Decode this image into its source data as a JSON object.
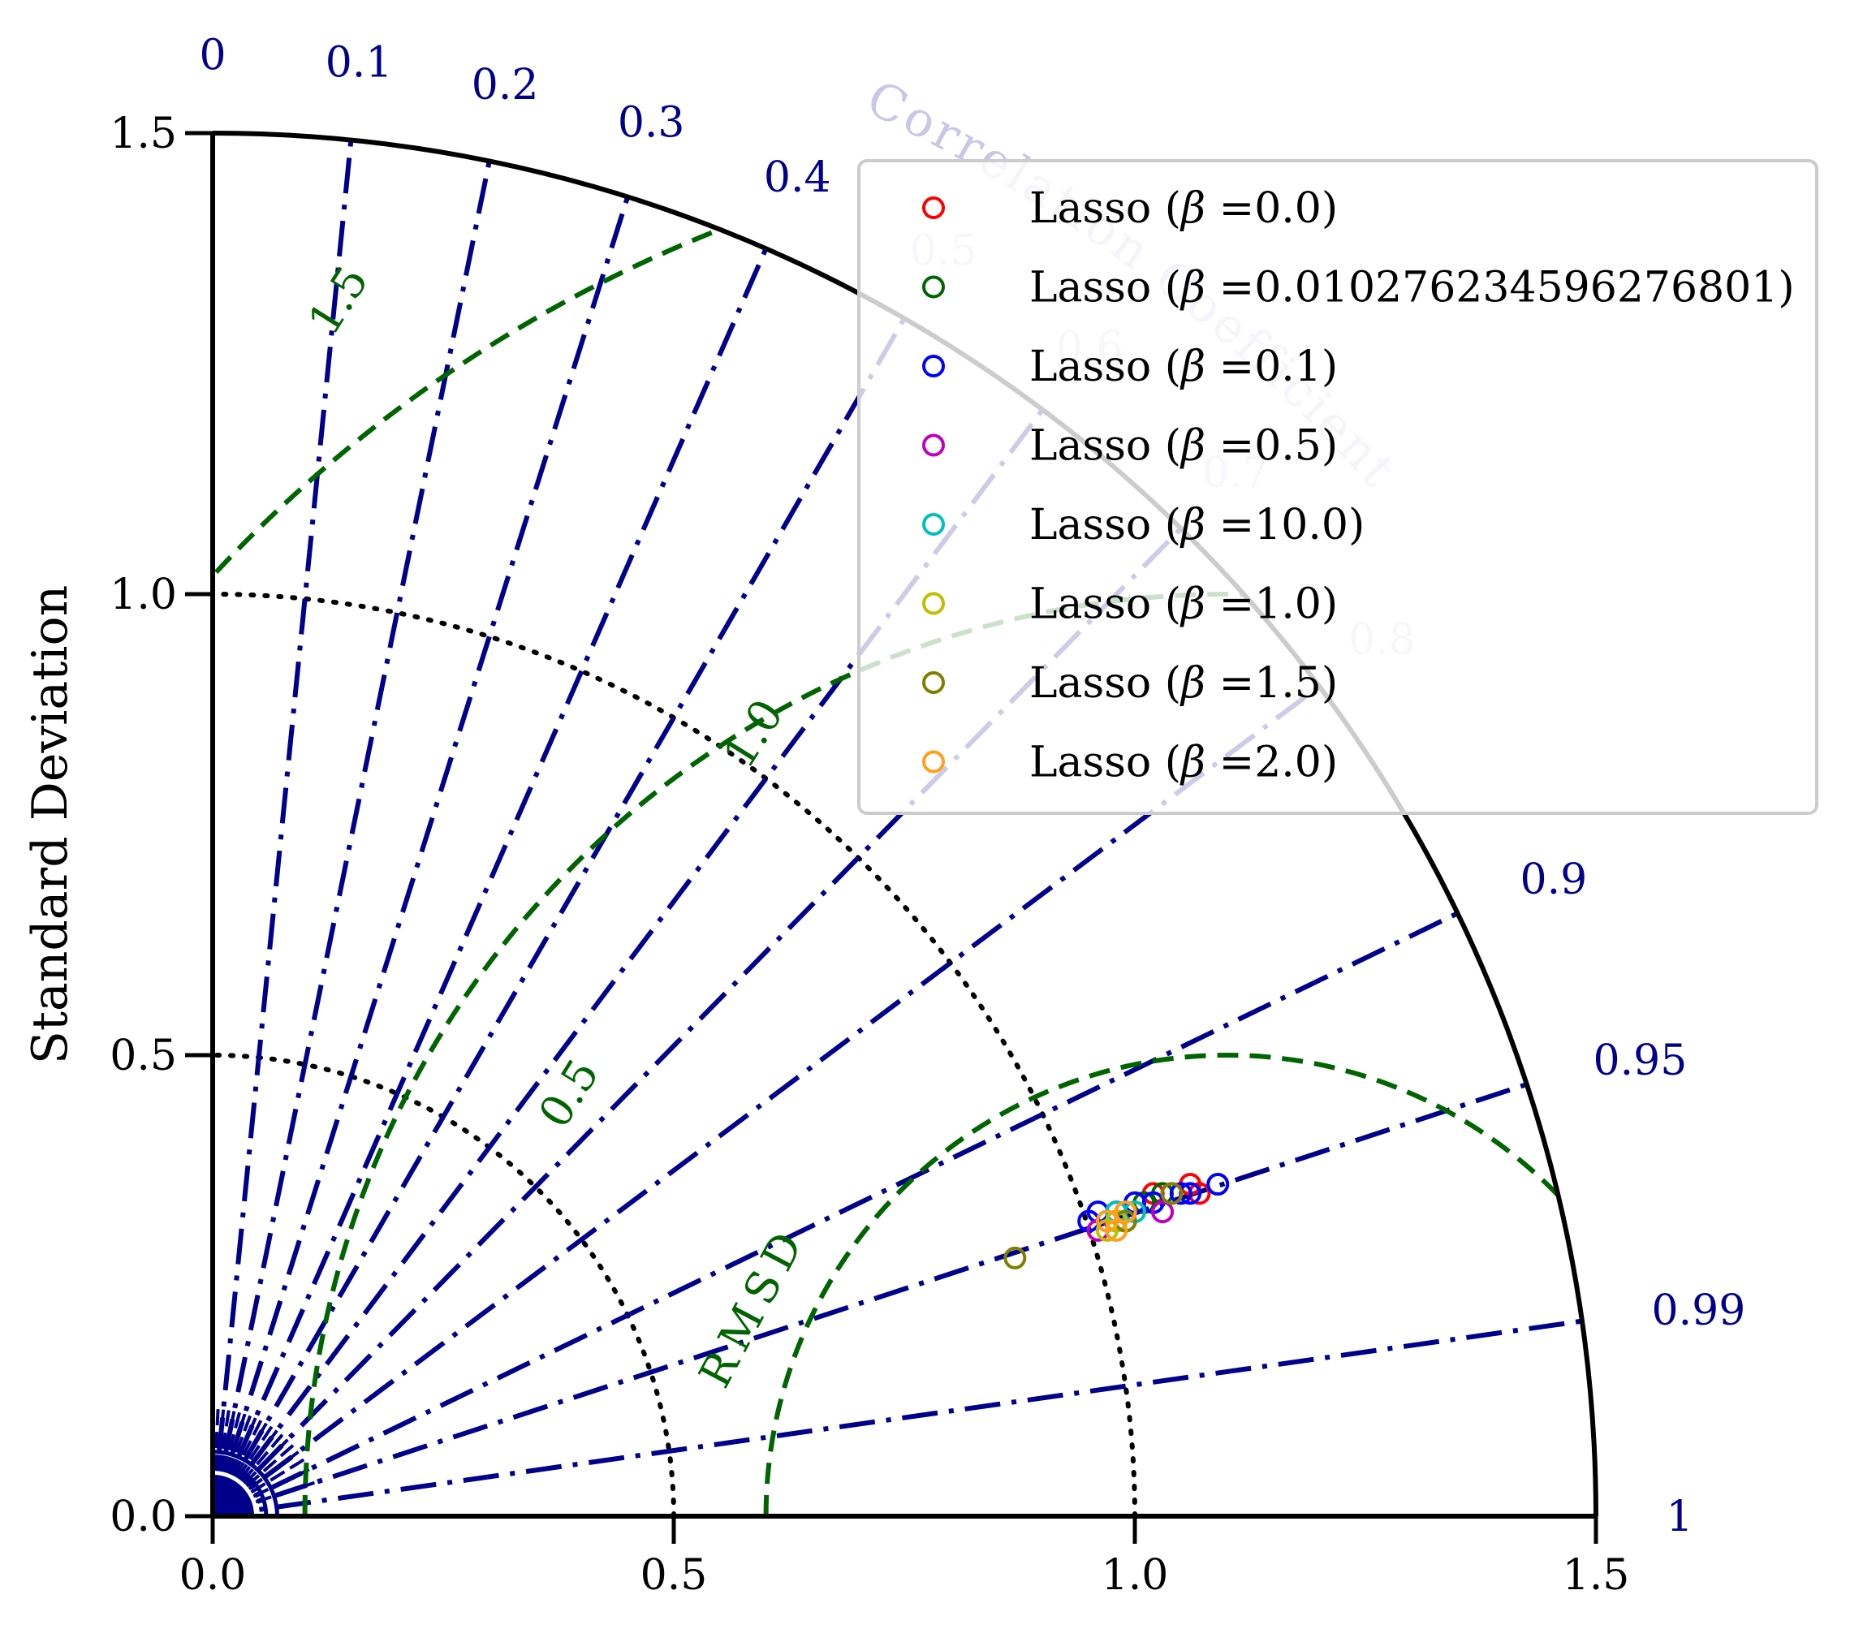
{
  "chart_data": {
    "type": "scatter",
    "subtype": "taylor-diagram",
    "title": "",
    "ylabel": "Standard Deviation",
    "xlabel": "",
    "std_range": [
      0,
      1.5
    ],
    "std_ticks": [
      "0.0",
      "0.5",
      "1.0",
      "1.5"
    ],
    "std_tick_values": [
      0,
      0.5,
      1.0,
      1.5
    ],
    "correlation_title": "Correlation Coefficient",
    "correlation_ticks": [
      {
        "value": 0,
        "label": "0"
      },
      {
        "value": 0.1,
        "label": "0.1"
      },
      {
        "value": 0.2,
        "label": "0.2"
      },
      {
        "value": 0.3,
        "label": "0.3"
      },
      {
        "value": 0.4,
        "label": "0.4"
      },
      {
        "value": 0.5,
        "label": "0.5"
      },
      {
        "value": 0.6,
        "label": "0.6"
      },
      {
        "value": 0.7,
        "label": "0.7"
      },
      {
        "value": 0.8,
        "label": "0.8"
      },
      {
        "value": 0.9,
        "label": "0.9"
      },
      {
        "value": 0.95,
        "label": "0.95"
      },
      {
        "value": 0.99,
        "label": "0.99"
      },
      {
        "value": 1,
        "label": "1"
      }
    ],
    "rmsd_title": "RMSD",
    "rmsd_contours": [
      {
        "value": 0.5,
        "label": "0.5"
      },
      {
        "value": 1.0,
        "label": "1.0"
      },
      {
        "value": 1.5,
        "label": "1.5"
      }
    ],
    "reference_std": 1.1,
    "std_arcs": [
      0.5,
      1.0
    ],
    "legend_position": "upper-right",
    "colors": {
      "correlation": "#00008b",
      "rmsd": "#006400",
      "std_arc": "#000000",
      "axis": "#000000"
    },
    "series": [
      {
        "name": "Lasso (β =0.0)",
        "legend_prefix": "Lasso (",
        "legend_beta": "β",
        "legend_suffix": " =0.0)",
        "color": "#ff0000",
        "points": [
          {
            "x": 1.06,
            "y": 0.36
          },
          {
            "x": 1.04,
            "y": 0.35
          },
          {
            "x": 1.02,
            "y": 0.35
          },
          {
            "x": 0.99,
            "y": 0.33
          },
          {
            "x": 1.07,
            "y": 0.35
          }
        ]
      },
      {
        "name": "Lasso (β =0.010276234596276801)",
        "legend_prefix": "Lasso (",
        "legend_beta": "β",
        "legend_suffix": " =0.010276234596276801)",
        "color": "#006400",
        "points": [
          {
            "x": 1.03,
            "y": 0.35
          },
          {
            "x": 1.01,
            "y": 0.34
          },
          {
            "x": 0.98,
            "y": 0.32
          }
        ]
      },
      {
        "name": "Lasso (β =0.1)",
        "legend_prefix": "Lasso (",
        "legend_beta": "β",
        "legend_suffix": " =0.1)",
        "color": "#0000ff",
        "points": [
          {
            "x": 1.09,
            "y": 0.36
          },
          {
            "x": 1.06,
            "y": 0.35
          },
          {
            "x": 1.05,
            "y": 0.35
          },
          {
            "x": 1.02,
            "y": 0.34
          },
          {
            "x": 1.0,
            "y": 0.34
          },
          {
            "x": 0.98,
            "y": 0.33
          },
          {
            "x": 0.96,
            "y": 0.33
          },
          {
            "x": 0.95,
            "y": 0.32
          }
        ]
      },
      {
        "name": "Lasso (β =0.5)",
        "legend_prefix": "Lasso (",
        "legend_beta": "β",
        "legend_suffix": " =0.5)",
        "color": "#bf00bf",
        "points": [
          {
            "x": 1.03,
            "y": 0.33
          },
          {
            "x": 0.99,
            "y": 0.32
          },
          {
            "x": 0.96,
            "y": 0.31
          }
        ]
      },
      {
        "name": "Lasso (β =10.0)",
        "legend_prefix": "Lasso (",
        "legend_beta": "β",
        "legend_suffix": " =10.0)",
        "color": "#00bfbf",
        "points": [
          {
            "x": 1.0,
            "y": 0.33
          },
          {
            "x": 0.98,
            "y": 0.33
          },
          {
            "x": 0.97,
            "y": 0.32
          }
        ]
      },
      {
        "name": "Lasso (β =1.0)",
        "legend_prefix": "Lasso (",
        "legend_beta": "β",
        "legend_suffix": " =1.0)",
        "color": "#bfbf00",
        "points": [
          {
            "x": 0.98,
            "y": 0.32
          },
          {
            "x": 0.97,
            "y": 0.31
          }
        ]
      },
      {
        "name": "Lasso (β =1.5)",
        "legend_prefix": "Lasso (",
        "legend_beta": "β",
        "legend_suffix": " =1.5)",
        "color": "#808000",
        "points": [
          {
            "x": 0.87,
            "y": 0.28
          },
          {
            "x": 1.04,
            "y": 0.35
          },
          {
            "x": 0.99,
            "y": 0.32
          }
        ]
      },
      {
        "name": "Lasso (β =2.0)",
        "legend_prefix": "Lasso (",
        "legend_beta": "β",
        "legend_suffix": " =2.0)",
        "color": "#ff9f1c",
        "points": [
          {
            "x": 0.99,
            "y": 0.33
          },
          {
            "x": 0.97,
            "y": 0.32
          },
          {
            "x": 0.98,
            "y": 0.31
          }
        ]
      }
    ]
  }
}
